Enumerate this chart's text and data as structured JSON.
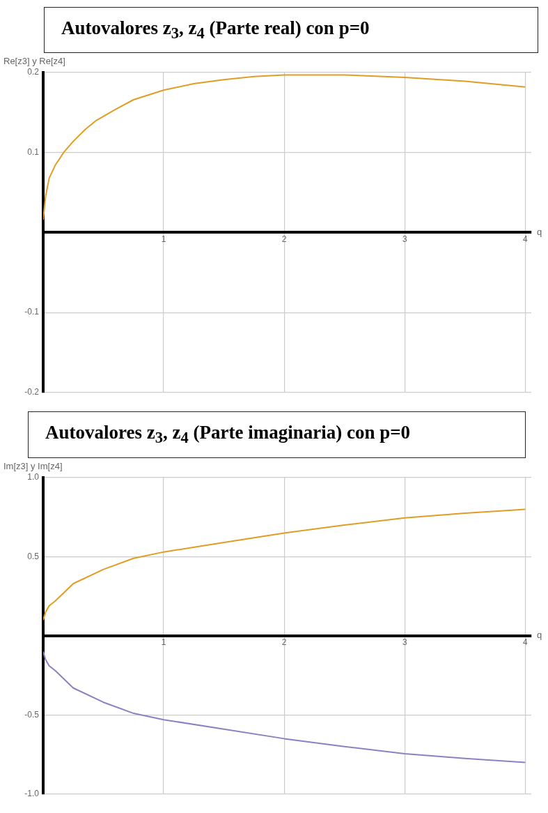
{
  "chart_data": [
    {
      "type": "line",
      "title": "Autovalores z$_{3}$, z$_{4}$ (Parte real) con  p=0",
      "xlabel": "q",
      "ylabel": "Re[z3] y Re[z4]",
      "xlim": [
        0,
        4.05
      ],
      "xticks": [
        1,
        2,
        3,
        4
      ],
      "ylim": [
        -0.2,
        0.2
      ],
      "yticks": [
        -0.2,
        -0.1,
        0.1,
        0.2
      ],
      "grid": true,
      "legend": false,
      "marker": "none",
      "line_style": "solid",
      "series": [
        {
          "color": "#e19c24",
          "x": [
            0,
            0.02,
            0.05,
            0.1,
            0.17,
            0.25,
            0.35,
            0.44,
            0.6,
            0.75,
            1,
            1.25,
            1.5,
            1.75,
            2,
            2.5,
            3,
            3.5,
            4
          ],
          "values": [
            0.016,
            0.045,
            0.068,
            0.084,
            0.1,
            0.114,
            0.129,
            0.14,
            0.154,
            0.166,
            0.178,
            0.186,
            0.191,
            0.195,
            0.197,
            0.197,
            0.194,
            0.189,
            0.182
          ]
        }
      ]
    },
    {
      "type": "line",
      "title": "Autovalores z$_{3}$, z$_{4}$ (Parte imaginaria) con p=0",
      "xlabel": "q",
      "ylabel": "Im[z3] y Im[z4]",
      "xlim": [
        0,
        4.05
      ],
      "xticks": [
        1,
        2,
        3,
        4
      ],
      "ylim": [
        -1,
        1
      ],
      "yticks": [
        {
          "value": -1,
          "label": "-1.0"
        },
        -0.5,
        0.5,
        {
          "value": 1,
          "label": "1.0"
        }
      ],
      "grid": true,
      "legend": false,
      "marker": "none",
      "line_style": "solid",
      "series": [
        {
          "color": "#e19c24",
          "x": [
            0,
            0.02,
            0.05,
            0.1,
            0.25,
            0.5,
            0.75,
            1,
            1.5,
            2,
            2.5,
            3,
            3.5,
            4
          ],
          "values": [
            0.1,
            0.15,
            0.19,
            0.22,
            0.33,
            0.42,
            0.49,
            0.53,
            0.59,
            0.65,
            0.7,
            0.745,
            0.775,
            0.8
          ]
        },
        {
          "color": "#8f7fc0",
          "x": [
            0,
            0.02,
            0.05,
            0.1,
            0.25,
            0.5,
            0.75,
            1,
            1.5,
            2,
            2.5,
            3,
            3.5,
            4
          ],
          "values": [
            -0.1,
            -0.15,
            -0.19,
            -0.22,
            -0.33,
            -0.42,
            -0.49,
            -0.53,
            -0.59,
            -0.65,
            -0.7,
            -0.745,
            -0.775,
            -0.8
          ]
        }
      ]
    }
  ]
}
